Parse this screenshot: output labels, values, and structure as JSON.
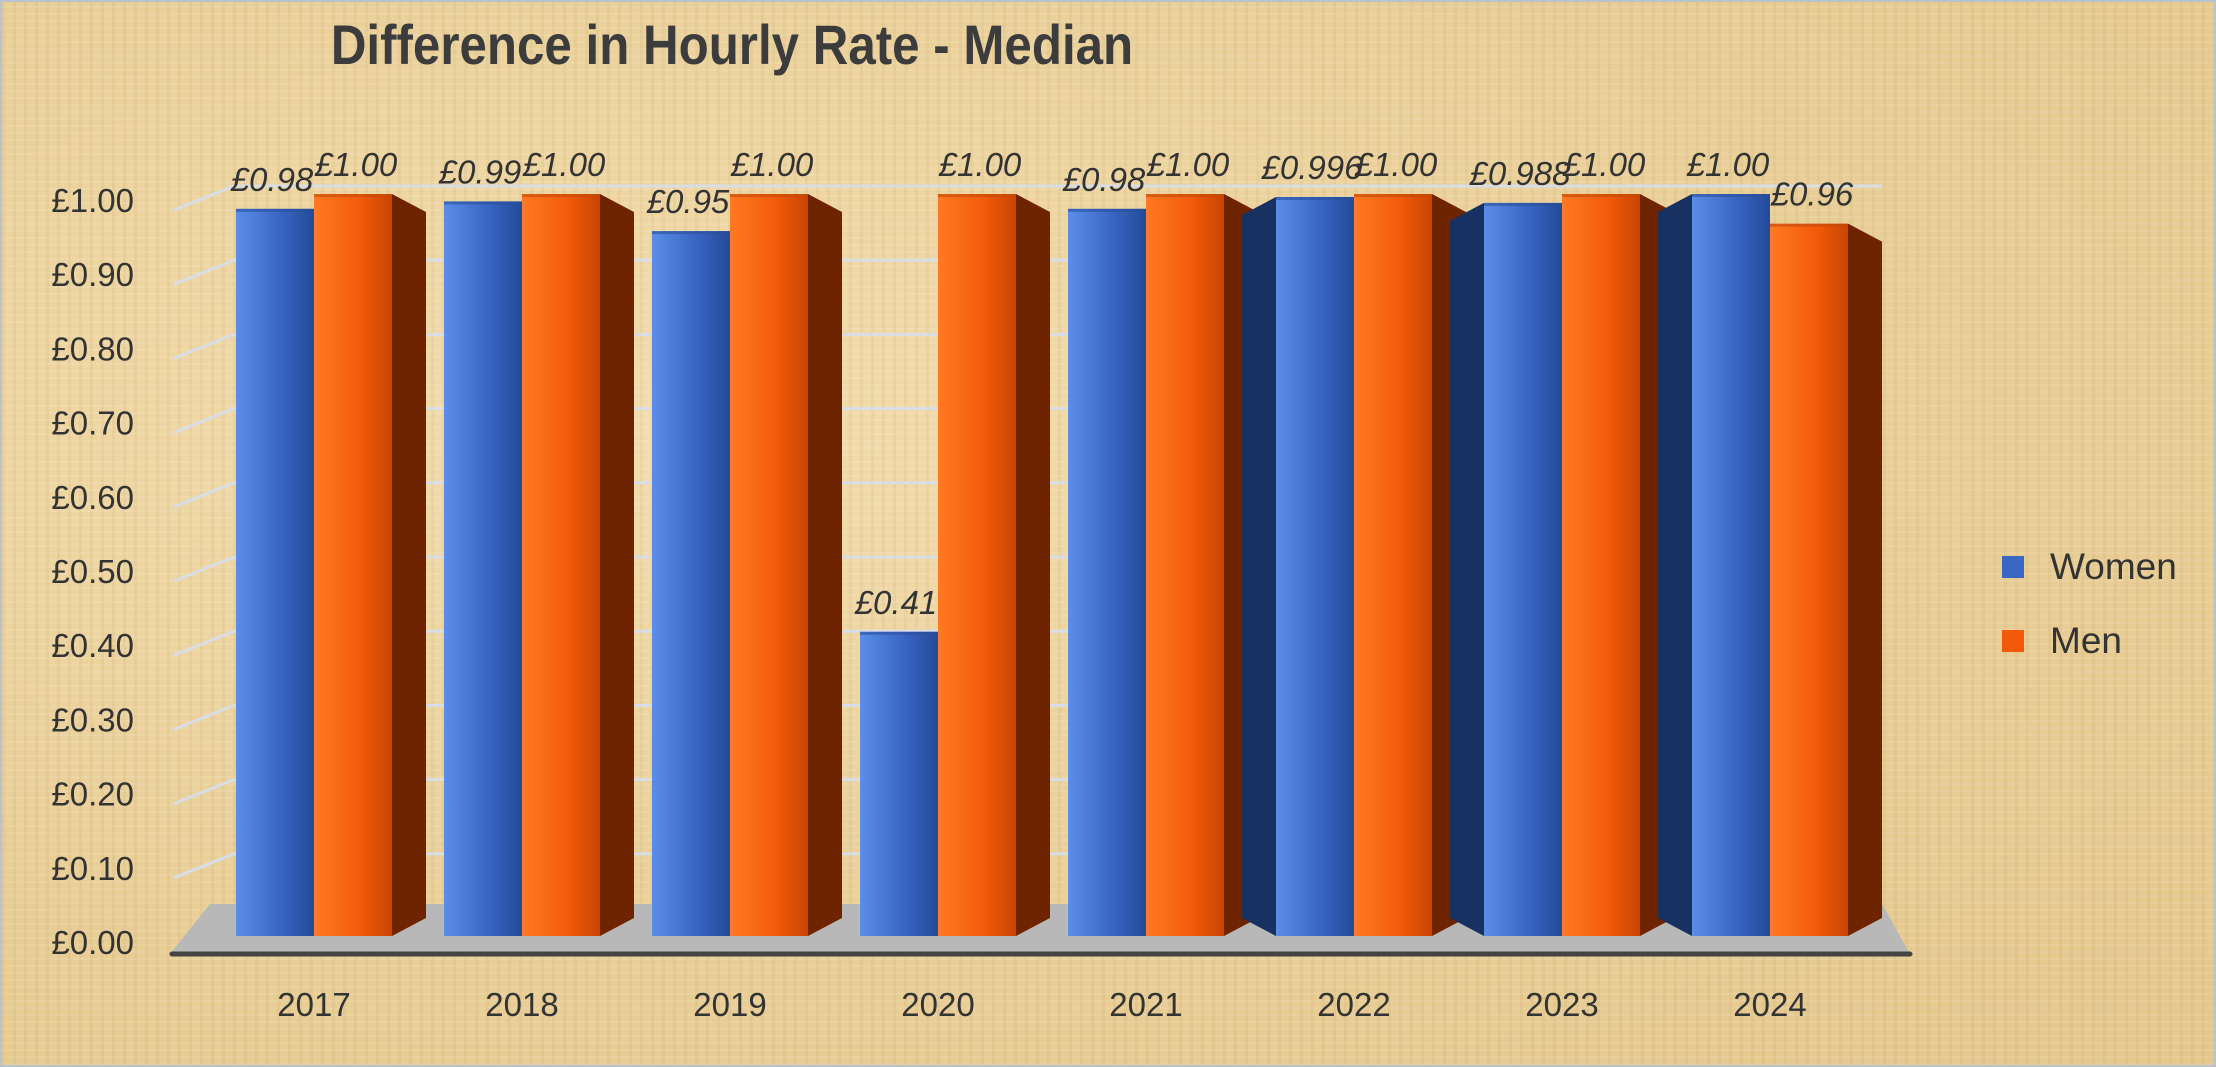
{
  "chart_data": {
    "type": "bar",
    "title": "Difference in Hourly Rate - Median",
    "categories": [
      "2017",
      "2018",
      "2019",
      "2020",
      "2021",
      "2022",
      "2023",
      "2024"
    ],
    "series": [
      {
        "name": "Women",
        "values": [
          0.98,
          0.99,
          0.95,
          0.41,
          0.98,
          0.996,
          0.988,
          1.0
        ],
        "labels": [
          "£0.98",
          "£0.99",
          "£0.95",
          "£0.41",
          "£0.98",
          "£0.996",
          "£0.988",
          "£1.00"
        ]
      },
      {
        "name": "Men",
        "values": [
          1.0,
          1.0,
          1.0,
          1.0,
          1.0,
          1.0,
          1.0,
          0.96
        ],
        "labels": [
          "£1.00",
          "£1.00",
          "£1.00",
          "£1.00",
          "£1.00",
          "£1.00",
          "£1.00",
          "£0.96"
        ]
      }
    ],
    "ylim": [
      0,
      1.0
    ],
    "yticks": [
      "£0.00",
      "£0.10",
      "£0.20",
      "£0.30",
      "£0.40",
      "£0.50",
      "£0.60",
      "£0.70",
      "£0.80",
      "£0.90",
      "£1.00"
    ],
    "xlabel": "",
    "ylabel": "",
    "grid": true,
    "legend_position": "right",
    "style": "3d-clustered-column",
    "colors": {
      "Women": "#3a66c4",
      "Men": "#f25a0a"
    }
  }
}
